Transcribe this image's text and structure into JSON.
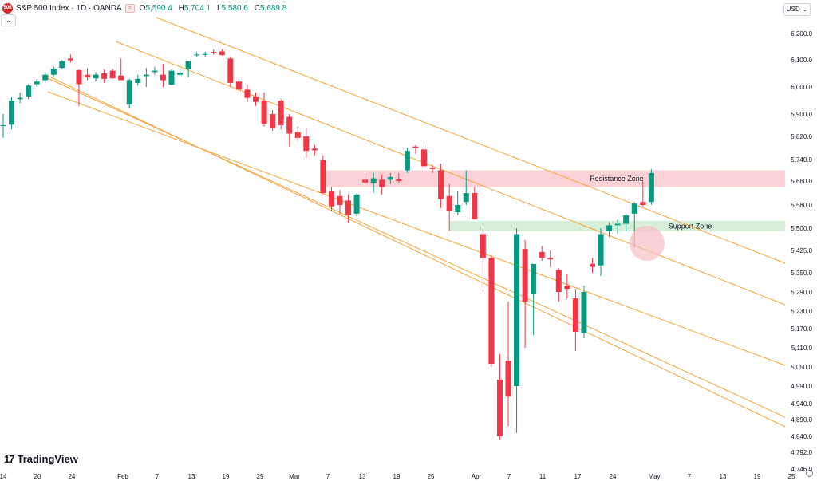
{
  "header": {
    "logo_text": "500",
    "title": "S&P 500 Index · 1D · OANDA",
    "ohlc": {
      "o_label": "O",
      "o": "5,590.4",
      "h_label": "H",
      "h": "5,704.1",
      "l_label": "L",
      "l": "5,580.6",
      "c_label": "C",
      "c": "5,689.8"
    },
    "collapse_icon": "chevron-down-icon",
    "compare_icon": "equals-icon",
    "currency": "USD",
    "currency_icon": "chevron-down-icon"
  },
  "branding": {
    "name": "TradingView"
  },
  "settings_icon": "gear-icon",
  "colors": {
    "up": "#089981",
    "down": "#f23645",
    "channel": "#f7a33b",
    "resistance": "#fbc7cc",
    "support": "#cdebd0",
    "highlight": "#f8bfc4"
  },
  "chart_data": {
    "type": "candlestick",
    "y_ticks": [
      "6,200.0",
      "6,100.0",
      "6,000.0",
      "5,900.0",
      "5,820.0",
      "5,740.0",
      "5,660.0",
      "5,580.0",
      "5,500.0",
      "5,425.0",
      "5,350.0",
      "5,290.0",
      "5,230.0",
      "5,170.0",
      "5,110.0",
      "5,050.0",
      "4,990.0",
      "4,940.0",
      "4,890.0",
      "4,840.0",
      "4,792.0",
      "4,746.0"
    ],
    "x_ticks": [
      "14",
      "20",
      "24",
      "Feb",
      "7",
      "13",
      "19",
      "25",
      "Mar",
      "7",
      "13",
      "19",
      "25",
      "Apr",
      "7",
      "11",
      "17",
      "24",
      "May",
      "7",
      "13",
      "19",
      "25"
    ],
    "candles": [
      {
        "o": 5860,
        "h": 5900,
        "l": 5815,
        "c": 5860
      },
      {
        "o": 5862,
        "h": 5965,
        "l": 5845,
        "c": 5950
      },
      {
        "o": 5955,
        "h": 5980,
        "l": 5940,
        "c": 5960
      },
      {
        "o": 5965,
        "h": 6010,
        "l": 5955,
        "c": 6005
      },
      {
        "o": 6010,
        "h": 6030,
        "l": 6000,
        "c": 6020
      },
      {
        "o": 6025,
        "h": 6055,
        "l": 6015,
        "c": 6045
      },
      {
        "o": 6045,
        "h": 6075,
        "l": 6040,
        "c": 6068
      },
      {
        "o": 6070,
        "h": 6100,
        "l": 6065,
        "c": 6095
      },
      {
        "o": 6105,
        "h": 6120,
        "l": 6090,
        "c": 6098
      },
      {
        "o": 6062,
        "h": 6065,
        "l": 5930,
        "c": 6010
      },
      {
        "o": 6045,
        "h": 6070,
        "l": 6025,
        "c": 6035
      },
      {
        "o": 6032,
        "h": 6055,
        "l": 6020,
        "c": 6045
      },
      {
        "o": 6050,
        "h": 6065,
        "l": 6015,
        "c": 6030
      },
      {
        "o": 6060,
        "h": 6068,
        "l": 6030,
        "c": 6032
      },
      {
        "o": 6042,
        "h": 6105,
        "l": 6025,
        "c": 6025
      },
      {
        "o": 5935,
        "h": 6030,
        "l": 5920,
        "c": 6025
      },
      {
        "o": 6015,
        "h": 6045,
        "l": 6005,
        "c": 6030
      },
      {
        "o": 6040,
        "h": 6070,
        "l": 6000,
        "c": 6045
      },
      {
        "o": 6055,
        "h": 6075,
        "l": 6045,
        "c": 6060
      },
      {
        "o": 6045,
        "h": 6085,
        "l": 6000,
        "c": 6025
      },
      {
        "o": 6008,
        "h": 6065,
        "l": 6005,
        "c": 6060
      },
      {
        "o": 6045,
        "h": 6068,
        "l": 6040,
        "c": 6052
      },
      {
        "o": 6065,
        "h": 6095,
        "l": 6035,
        "c": 6095
      },
      {
        "o": 6118,
        "h": 6128,
        "l": 6110,
        "c": 6120
      },
      {
        "o": 6120,
        "h": 6130,
        "l": 6112,
        "c": 6122
      },
      {
        "o": 6130,
        "h": 6140,
        "l": 6120,
        "c": 6128
      },
      {
        "o": 6132,
        "h": 6140,
        "l": 6115,
        "c": 6118
      },
      {
        "o": 6105,
        "h": 6110,
        "l": 6000,
        "c": 6015
      },
      {
        "o": 6020,
        "h": 6025,
        "l": 5980,
        "c": 5990
      },
      {
        "o": 5990,
        "h": 6010,
        "l": 5945,
        "c": 5960
      },
      {
        "o": 5965,
        "h": 5980,
        "l": 5930,
        "c": 5945
      },
      {
        "o": 5950,
        "h": 5980,
        "l": 5855,
        "c": 5865
      },
      {
        "o": 5900,
        "h": 5915,
        "l": 5840,
        "c": 5850
      },
      {
        "o": 5950,
        "h": 5955,
        "l": 5845,
        "c": 5860
      },
      {
        "o": 5890,
        "h": 5900,
        "l": 5785,
        "c": 5830
      },
      {
        "o": 5835,
        "h": 5855,
        "l": 5805,
        "c": 5815
      },
      {
        "o": 5820,
        "h": 5850,
        "l": 5745,
        "c": 5770
      },
      {
        "o": 5778,
        "h": 5790,
        "l": 5755,
        "c": 5772
      },
      {
        "o": 5738,
        "h": 5755,
        "l": 5618,
        "c": 5620
      },
      {
        "o": 5625,
        "h": 5640,
        "l": 5560,
        "c": 5575
      },
      {
        "o": 5610,
        "h": 5630,
        "l": 5548,
        "c": 5580
      },
      {
        "o": 5595,
        "h": 5615,
        "l": 5520,
        "c": 5545
      },
      {
        "o": 5550,
        "h": 5620,
        "l": 5540,
        "c": 5615
      },
      {
        "o": 5665,
        "h": 5690,
        "l": 5650,
        "c": 5655
      },
      {
        "o": 5655,
        "h": 5690,
        "l": 5620,
        "c": 5670
      },
      {
        "o": 5665,
        "h": 5685,
        "l": 5615,
        "c": 5640
      },
      {
        "o": 5665,
        "h": 5690,
        "l": 5650,
        "c": 5675
      },
      {
        "o": 5668,
        "h": 5690,
        "l": 5655,
        "c": 5660
      },
      {
        "o": 5700,
        "h": 5780,
        "l": 5690,
        "c": 5770
      },
      {
        "o": 5785,
        "h": 5790,
        "l": 5760,
        "c": 5780
      },
      {
        "o": 5775,
        "h": 5790,
        "l": 5700,
        "c": 5715
      },
      {
        "o": 5710,
        "h": 5720,
        "l": 5690,
        "c": 5705
      },
      {
        "o": 5700,
        "h": 5725,
        "l": 5570,
        "c": 5600
      },
      {
        "o": 5610,
        "h": 5650,
        "l": 5490,
        "c": 5560
      },
      {
        "o": 5555,
        "h": 5625,
        "l": 5545,
        "c": 5580
      },
      {
        "o": 5590,
        "h": 5700,
        "l": 5580,
        "c": 5620
      },
      {
        "o": 5620,
        "h": 5640,
        "l": 5530,
        "c": 5530
      },
      {
        "o": 5480,
        "h": 5500,
        "l": 5290,
        "c": 5400
      },
      {
        "o": 5400,
        "h": 5410,
        "l": 5050,
        "c": 5060
      },
      {
        "o": 5010,
        "h": 5090,
        "l": 4830,
        "c": 4840
      },
      {
        "o": 5070,
        "h": 5260,
        "l": 4870,
        "c": 4960
      },
      {
        "o": 4990,
        "h": 5500,
        "l": 4850,
        "c": 5480
      },
      {
        "o": 5430,
        "h": 5460,
        "l": 5110,
        "c": 5260
      },
      {
        "o": 5285,
        "h": 5380,
        "l": 5150,
        "c": 5380
      },
      {
        "o": 5420,
        "h": 5440,
        "l": 5390,
        "c": 5400
      },
      {
        "o": 5400,
        "h": 5425,
        "l": 5370,
        "c": 5395
      },
      {
        "o": 5360,
        "h": 5365,
        "l": 5260,
        "c": 5290
      },
      {
        "o": 5310,
        "h": 5345,
        "l": 5270,
        "c": 5300
      },
      {
        "o": 5270,
        "h": 5300,
        "l": 5100,
        "c": 5160
      },
      {
        "o": 5155,
        "h": 5310,
        "l": 5140,
        "c": 5290
      },
      {
        "o": 5380,
        "h": 5400,
        "l": 5350,
        "c": 5370
      },
      {
        "o": 5375,
        "h": 5500,
        "l": 5340,
        "c": 5480
      },
      {
        "o": 5490,
        "h": 5520,
        "l": 5470,
        "c": 5510
      },
      {
        "o": 5510,
        "h": 5530,
        "l": 5480,
        "c": 5515
      },
      {
        "o": 5515,
        "h": 5550,
        "l": 5490,
        "c": 5545
      },
      {
        "o": 5550,
        "h": 5590,
        "l": 5435,
        "c": 5585
      },
      {
        "o": 5590,
        "h": 5660,
        "l": 5575,
        "c": 5580
      },
      {
        "o": 5590,
        "h": 5704.1,
        "l": 5580.6,
        "c": 5689.8
      }
    ],
    "zones": [
      {
        "label": "Resistance Zone",
        "from": 5640,
        "to": 5700
      },
      {
        "label": "Support Zone",
        "from": 5490,
        "to": 5525
      }
    ]
  }
}
